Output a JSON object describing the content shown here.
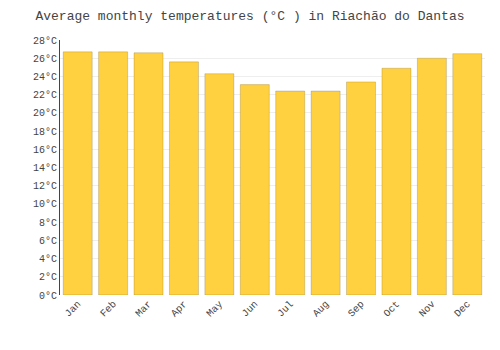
{
  "chart_data": {
    "type": "bar",
    "title": "Average monthly temperatures (°C ) in Riachão do Dantas",
    "categories": [
      "Jan",
      "Feb",
      "Mar",
      "Apr",
      "May",
      "Jun",
      "Jul",
      "Aug",
      "Sep",
      "Oct",
      "Nov",
      "Dec"
    ],
    "values": [
      26.7,
      26.7,
      26.6,
      25.6,
      24.3,
      23.1,
      22.4,
      22.4,
      23.4,
      24.9,
      26.0,
      26.5
    ],
    "color": "#FFD040",
    "ylim": [
      0,
      28
    ],
    "yticks": [
      {
        "value": 0,
        "label": "0°C"
      },
      {
        "value": 2,
        "label": "2°C"
      },
      {
        "value": 4,
        "label": "4°C"
      },
      {
        "value": 6,
        "label": "6°C"
      },
      {
        "value": 8,
        "label": "8°C"
      },
      {
        "value": 10,
        "label": "10°C"
      },
      {
        "value": 12,
        "label": "12°C"
      },
      {
        "value": 14,
        "label": "14°C"
      },
      {
        "value": 16,
        "label": "16°C"
      },
      {
        "value": 18,
        "label": "18°C"
      },
      {
        "value": 20,
        "label": "20°C"
      },
      {
        "value": 22,
        "label": "22°C"
      },
      {
        "value": 24,
        "label": "24°C"
      },
      {
        "value": 26,
        "label": "26°C"
      },
      {
        "value": 28,
        "label": "28°C"
      }
    ],
    "grid": true
  }
}
